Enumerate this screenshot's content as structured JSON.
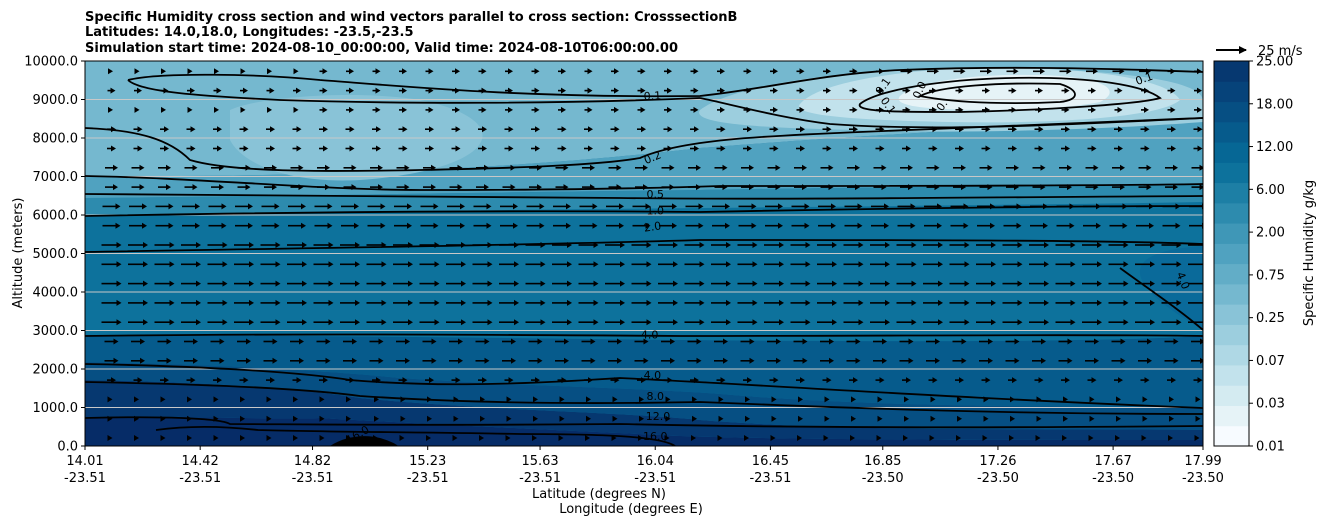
{
  "chart_data": {
    "type": "contour",
    "title_lines": [
      "Specific Humidity cross section and wind vectors parallel to cross section: CrosssectionB",
      "Latitudes: 14.0,18.0, Longitudes: -23.5,-23.5",
      "Simulation start time: 2024-08-10_00:00:00, Valid time: 2024-08-10T06:00:00.00"
    ],
    "xlabel_lines": [
      "Latitude (degrees N)",
      "Longitude (degrees E)"
    ],
    "ylabel": "Altitude (meters)",
    "ylim": [
      0,
      10000
    ],
    "y_ticks": [
      0,
      1000,
      2000,
      3000,
      4000,
      5000,
      6000,
      7000,
      8000,
      9000,
      10000
    ],
    "y_tick_labels": [
      "0.0",
      "1000.0",
      "2000.0",
      "3000.0",
      "4000.0",
      "5000.0",
      "6000.0",
      "7000.0",
      "8000.0",
      "9000.0",
      "10000.0"
    ],
    "xlim": [
      14.01,
      17.99
    ],
    "x_ticks": [
      {
        "lat": "14.01",
        "lon": "-23.51",
        "v": 14.01
      },
      {
        "lat": "14.42",
        "lon": "-23.51",
        "v": 14.42
      },
      {
        "lat": "14.82",
        "lon": "-23.51",
        "v": 14.82
      },
      {
        "lat": "15.23",
        "lon": "-23.51",
        "v": 15.23
      },
      {
        "lat": "15.63",
        "lon": "-23.51",
        "v": 15.63
      },
      {
        "lat": "16.04",
        "lon": "-23.51",
        "v": 16.04
      },
      {
        "lat": "16.45",
        "lon": "-23.51",
        "v": 16.45
      },
      {
        "lat": "16.85",
        "lon": "-23.50",
        "v": 16.85
      },
      {
        "lat": "17.26",
        "lon": "-23.50",
        "v": 17.26
      },
      {
        "lat": "17.67",
        "lon": "-23.50",
        "v": 17.67
      },
      {
        "lat": "17.99",
        "lon": "-23.50",
        "v": 17.99
      }
    ],
    "colorbar": {
      "label": "Specific Humidity g/kg",
      "tick_labels": [
        "0.01",
        "0.03",
        "0.07",
        "0.25",
        "0.75",
        "2.00",
        "6.00",
        "12.00",
        "18.00",
        "25.00"
      ],
      "level_count": 19,
      "colors": [
        "#f7fbff",
        "#e6f3f7",
        "#d4ebf1",
        "#c2e2ec",
        "#afd8e5",
        "#9ccede",
        "#89c3d7",
        "#75b8cf",
        "#62adc7",
        "#50a2c0",
        "#3f97b7",
        "#2d8bae",
        "#1d7fa5",
        "#0d729c",
        "#066795",
        "#065b8c",
        "#064f83",
        "#06437a",
        "#063870",
        "#062c67"
      ]
    },
    "quiver_key": {
      "label": "25 m/s",
      "speed": 25
    },
    "contour_labels": [
      {
        "text": "0.1",
        "x": 16.03,
        "y": 9100,
        "rot": -3
      },
      {
        "text": "0.1",
        "x": 17.78,
        "y": 9550,
        "rot": -20
      },
      {
        "text": "0.1",
        "x": 16.85,
        "y": 9350,
        "rot": -55
      },
      {
        "text": "0.0",
        "x": 16.98,
        "y": 9250,
        "rot": -65
      },
      {
        "text": "0.",
        "x": 17.06,
        "y": 8850,
        "rot": -55
      },
      {
        "text": "0.1",
        "x": 16.87,
        "y": 8850,
        "rot": 55
      },
      {
        "text": "0.2",
        "x": 16.03,
        "y": 7500,
        "rot": -22
      },
      {
        "text": "0.5",
        "x": 16.04,
        "y": 6550,
        "rot": 0
      },
      {
        "text": "1.0",
        "x": 16.04,
        "y": 6120,
        "rot": 0
      },
      {
        "text": "2.0",
        "x": 16.03,
        "y": 5700,
        "rot": -8
      },
      {
        "text": "4.0",
        "x": 17.92,
        "y": 4300,
        "rot": 68
      },
      {
        "text": "4.0",
        "x": 16.02,
        "y": 2900,
        "rot": 0
      },
      {
        "text": "4.0",
        "x": 16.03,
        "y": 1850,
        "rot": 0
      },
      {
        "text": "8.0",
        "x": 16.04,
        "y": 1300,
        "rot": 0
      },
      {
        "text": "12.0",
        "x": 16.05,
        "y": 780,
        "rot": 0
      },
      {
        "text": "16.0",
        "x": 16.04,
        "y": 260,
        "rot": 0
      },
      {
        "text": "16.0",
        "x": 14.98,
        "y": 300,
        "rot": -30
      }
    ]
  }
}
